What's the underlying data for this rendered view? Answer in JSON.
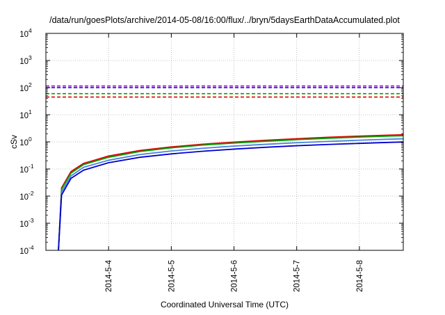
{
  "chart_data": {
    "type": "line",
    "title": "/data/run/goesPlots/archive/2014-05-08/16:00/flux/../bryn/5daysEarthDataAccumulated.plot",
    "xlabel": "Coordinated Universal Time (UTC)",
    "ylabel": "cSv",
    "y_scale": "log",
    "ylim_exponents": [
      -4,
      4
    ],
    "y_ticks": [
      {
        "base": "10",
        "exp": "-4"
      },
      {
        "base": "10",
        "exp": "-3"
      },
      {
        "base": "10",
        "exp": "-2"
      },
      {
        "base": "10",
        "exp": "-1"
      },
      {
        "base": "10",
        "exp": "0"
      },
      {
        "base": "10",
        "exp": "1"
      },
      {
        "base": "10",
        "exp": "2"
      },
      {
        "base": "10",
        "exp": "3"
      },
      {
        "base": "10",
        "exp": "4"
      }
    ],
    "x_ticks": [
      "2014-5-4",
      "2014-5-5",
      "2014-5-6",
      "2014-5-7",
      "2014-5-8"
    ],
    "x_tick_days": [
      4,
      5,
      6,
      7,
      8
    ],
    "xlim_days": [
      3.0,
      8.7
    ],
    "start_day": 3.2,
    "grid": true,
    "legend": "none",
    "thresholds": [
      {
        "value": 115,
        "color": "#9400d3",
        "style": "dashed"
      },
      {
        "value": 100,
        "color": "#0000cd",
        "style": "dashed"
      },
      {
        "value": 60,
        "color": "#00a000",
        "style": "dashed"
      },
      {
        "value": 45,
        "color": "#e00000",
        "style": "dashed"
      }
    ],
    "series": [
      {
        "color": "#e00000",
        "points": [
          [
            3.2,
            0.0001
          ],
          [
            3.25,
            0.02
          ],
          [
            3.4,
            0.08
          ],
          [
            3.6,
            0.16
          ],
          [
            4.0,
            0.3
          ],
          [
            4.5,
            0.48
          ],
          [
            5.0,
            0.65
          ],
          [
            5.5,
            0.82
          ],
          [
            6.0,
            0.98
          ],
          [
            6.5,
            1.14
          ],
          [
            7.0,
            1.3
          ],
          [
            7.5,
            1.48
          ],
          [
            8.0,
            1.63
          ],
          [
            8.5,
            1.78
          ],
          [
            8.7,
            1.83
          ]
        ]
      },
      {
        "color": "#00a000",
        "points": [
          [
            3.2,
            0.0001
          ],
          [
            3.25,
            0.018
          ],
          [
            3.4,
            0.07
          ],
          [
            3.6,
            0.145
          ],
          [
            4.0,
            0.27
          ],
          [
            4.5,
            0.44
          ],
          [
            5.0,
            0.6
          ],
          [
            5.5,
            0.76
          ],
          [
            6.0,
            0.9
          ],
          [
            6.5,
            1.05
          ],
          [
            7.0,
            1.2
          ],
          [
            7.5,
            1.36
          ],
          [
            8.0,
            1.5
          ],
          [
            8.5,
            1.64
          ],
          [
            8.7,
            1.68
          ]
        ]
      },
      {
        "color": "#4a7fe0",
        "points": [
          [
            3.2,
            0.0001
          ],
          [
            3.25,
            0.014
          ],
          [
            3.4,
            0.055
          ],
          [
            3.6,
            0.115
          ],
          [
            4.0,
            0.21
          ],
          [
            4.5,
            0.34
          ],
          [
            5.0,
            0.46
          ],
          [
            5.5,
            0.58
          ],
          [
            6.0,
            0.7
          ],
          [
            6.5,
            0.81
          ],
          [
            7.0,
            0.93
          ],
          [
            7.5,
            1.04
          ],
          [
            8.0,
            1.15
          ],
          [
            8.5,
            1.26
          ],
          [
            8.7,
            1.3
          ]
        ]
      },
      {
        "color": "#0000cd",
        "points": [
          [
            3.2,
            0.0001
          ],
          [
            3.25,
            0.011
          ],
          [
            3.4,
            0.045
          ],
          [
            3.6,
            0.09
          ],
          [
            4.0,
            0.17
          ],
          [
            4.5,
            0.27
          ],
          [
            5.0,
            0.36
          ],
          [
            5.5,
            0.45
          ],
          [
            6.0,
            0.54
          ],
          [
            6.5,
            0.63
          ],
          [
            7.0,
            0.72
          ],
          [
            7.5,
            0.8
          ],
          [
            8.0,
            0.88
          ],
          [
            8.5,
            0.96
          ],
          [
            8.7,
            0.99
          ]
        ]
      }
    ]
  }
}
